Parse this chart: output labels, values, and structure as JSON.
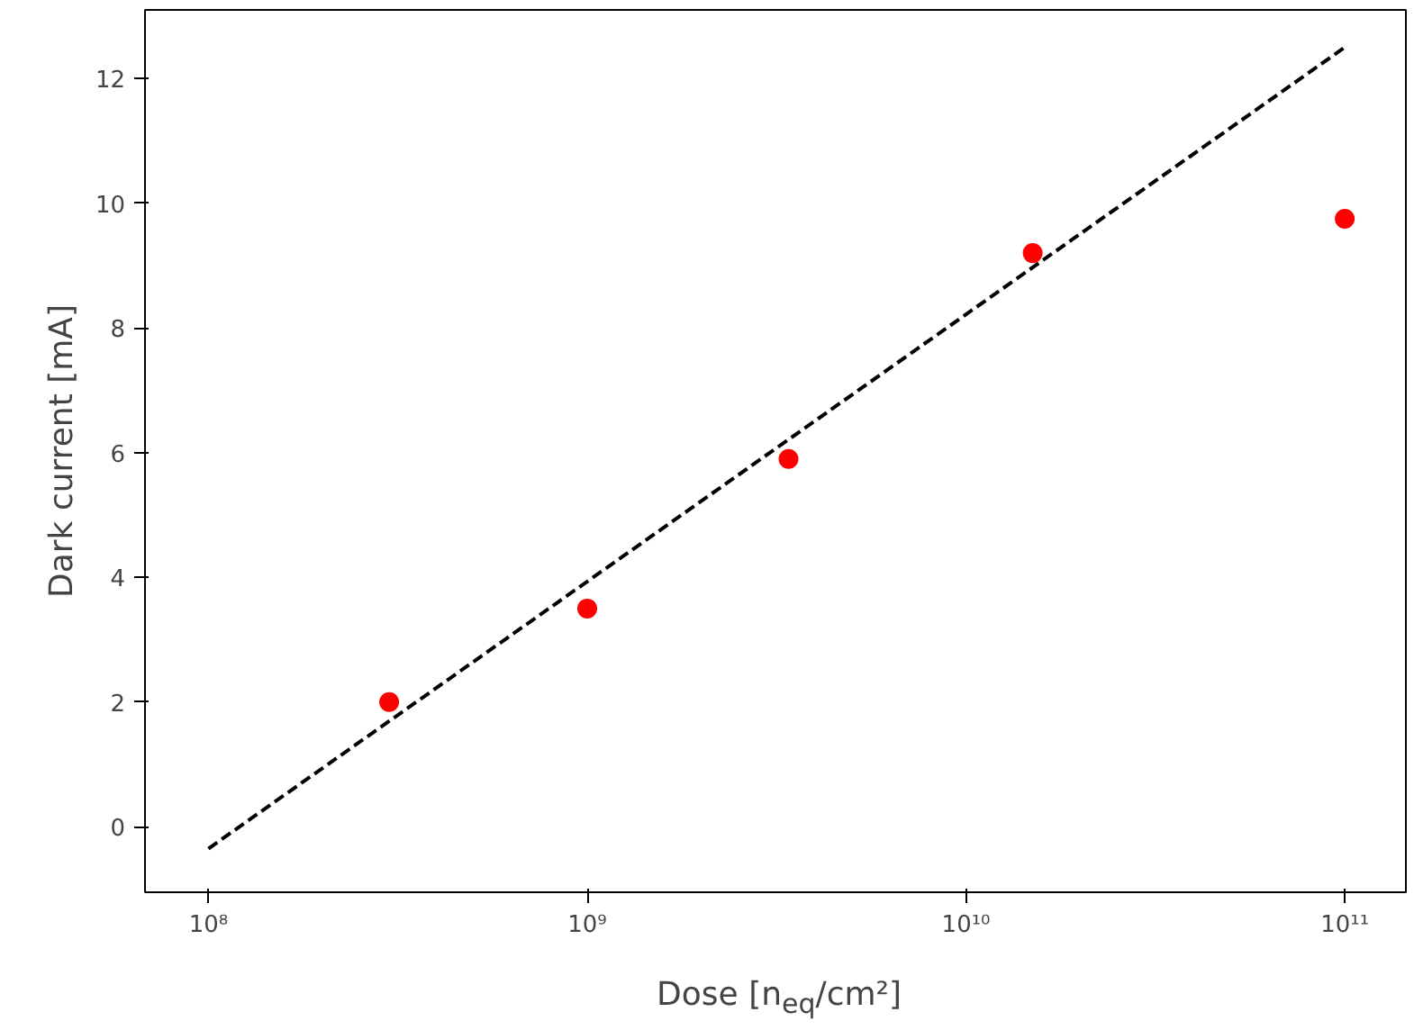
{
  "chart_data": {
    "type": "scatter",
    "x": [
      300000000.0,
      1000000000.0,
      3400000000.0,
      15000000000.0,
      100000000000.0
    ],
    "series": [
      {
        "color": "#ff0000",
        "values": [
          2.0,
          3.5,
          5.9,
          9.2,
          9.75
        ]
      },
      {
        "type": "line",
        "color": "#000000",
        "line_style": "dashed",
        "marker": "none",
        "x": [
          100000000.0,
          100000000000.0
        ],
        "values": [
          -0.35,
          12.5
        ]
      }
    ],
    "xlabel": "Dose [n$_{eq}$/cm²]",
    "ylabel": "Dark current [mA]",
    "log": "x",
    "marker": "circle",
    "xlim": [
      68000000.0,
      145000000000.0
    ],
    "ylim": [
      -1.05,
      13.1
    ],
    "xticks": [
      {
        "value": 100000000.0,
        "label": "10⁸"
      },
      {
        "value": 1000000000.0,
        "label": "10⁹"
      },
      {
        "value": 10000000000.0,
        "label": "10¹⁰"
      },
      {
        "value": 100000000000.0,
        "label": "10¹¹"
      }
    ],
    "yticks": [
      0,
      2,
      4,
      6,
      8,
      10,
      12
    ],
    "grid": false
  }
}
